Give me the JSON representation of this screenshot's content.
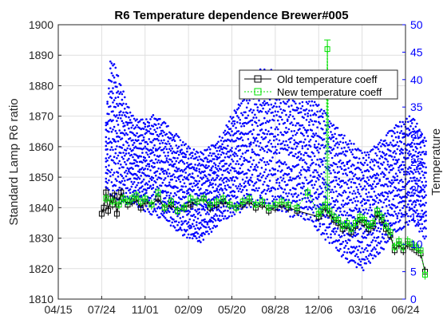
{
  "chart_data": {
    "type": "scatter",
    "title": "R6 Temperature dependence Brewer#005",
    "xlabel": "",
    "ylabel": "Standard Lamp R6 ratio",
    "ylabel_right": "Temperature",
    "x_tick_labels": [
      "04/15",
      "07/24",
      "11/01",
      "02/09",
      "05/20",
      "08/28",
      "12/06",
      "03/16",
      "06/24"
    ],
    "y_left": {
      "lim": [
        1810,
        1900
      ],
      "ticks": [
        1810,
        1820,
        1830,
        1840,
        1850,
        1860,
        1870,
        1880,
        1890,
        1900
      ]
    },
    "y_right": {
      "lim": [
        0,
        50
      ],
      "ticks": [
        0,
        5,
        10,
        15,
        20,
        25,
        30,
        35,
        40,
        45,
        50
      ]
    },
    "grid": true,
    "legend_position": "top-right",
    "colors": {
      "old": "#000000",
      "new": "#00e000",
      "temperature": "#0000ff"
    },
    "series": [
      {
        "name": "Old temperature coeff",
        "axis": "left",
        "points": [
          [
            2.0,
            1838
          ],
          [
            2.1,
            1840
          ],
          [
            2.2,
            1845
          ],
          [
            2.3,
            1839
          ],
          [
            2.4,
            1843
          ],
          [
            2.5,
            1841
          ],
          [
            2.6,
            1844
          ],
          [
            2.7,
            1838
          ],
          [
            2.8,
            1842
          ],
          [
            2.9,
            1845
          ],
          [
            3.0,
            1843
          ],
          [
            3.2,
            1841
          ],
          [
            3.4,
            1842
          ],
          [
            3.6,
            1843
          ],
          [
            3.8,
            1840
          ],
          [
            4.0,
            1842
          ],
          [
            4.3,
            1841
          ],
          [
            4.6,
            1843
          ],
          [
            4.9,
            1840
          ],
          [
            5.2,
            1841
          ],
          [
            5.5,
            1839
          ],
          [
            5.8,
            1840
          ],
          [
            6.1,
            1841
          ],
          [
            6.4,
            1842
          ],
          [
            6.7,
            1843
          ],
          [
            7.0,
            1840
          ],
          [
            7.3,
            1841
          ],
          [
            7.6,
            1842
          ],
          [
            7.9,
            1841
          ],
          [
            8.2,
            1840
          ],
          [
            8.5,
            1841
          ],
          [
            8.8,
            1842
          ],
          [
            9.1,
            1840
          ],
          [
            9.4,
            1841
          ],
          [
            9.7,
            1839
          ],
          [
            10.0,
            1840
          ],
          [
            10.3,
            1841
          ],
          [
            10.6,
            1840
          ],
          [
            11.0,
            1839
          ],
          [
            12.0,
            1837
          ],
          [
            12.1,
            1838
          ],
          [
            12.3,
            1840
          ],
          [
            12.5,
            1838
          ],
          [
            12.7,
            1836
          ],
          [
            12.9,
            1835
          ],
          [
            13.1,
            1833
          ],
          [
            13.3,
            1834
          ],
          [
            13.5,
            1832
          ],
          [
            13.7,
            1834
          ],
          [
            13.9,
            1836
          ],
          [
            14.1,
            1835
          ],
          [
            14.3,
            1833
          ],
          [
            14.5,
            1834
          ],
          [
            14.7,
            1838
          ],
          [
            14.9,
            1836
          ],
          [
            15.1,
            1833
          ],
          [
            15.3,
            1831
          ],
          [
            15.5,
            1826
          ],
          [
            15.7,
            1828
          ],
          [
            15.9,
            1826
          ],
          [
            16.1,
            1828
          ],
          [
            16.3,
            1827
          ],
          [
            16.5,
            1826
          ],
          [
            16.7,
            1825
          ],
          [
            16.9,
            1819
          ]
        ]
      },
      {
        "name": "New temperature coeff",
        "axis": "left",
        "points": [
          [
            2.2,
            1843
          ],
          [
            2.5,
            1842
          ],
          [
            2.8,
            1841
          ],
          [
            3.0,
            1843
          ],
          [
            3.2,
            1842
          ],
          [
            3.4,
            1843
          ],
          [
            3.6,
            1844
          ],
          [
            3.8,
            1842
          ],
          [
            4.0,
            1843
          ],
          [
            4.3,
            1841
          ],
          [
            4.6,
            1845
          ],
          [
            4.9,
            1840
          ],
          [
            5.2,
            1842
          ],
          [
            5.5,
            1839
          ],
          [
            5.8,
            1840
          ],
          [
            6.1,
            1843
          ],
          [
            6.4,
            1842
          ],
          [
            6.7,
            1843
          ],
          [
            7.0,
            1841
          ],
          [
            7.3,
            1842
          ],
          [
            7.6,
            1843
          ],
          [
            7.9,
            1841
          ],
          [
            8.2,
            1840
          ],
          [
            8.5,
            1842
          ],
          [
            8.8,
            1843
          ],
          [
            9.1,
            1841
          ],
          [
            9.4,
            1842
          ],
          [
            9.7,
            1840
          ],
          [
            10.0,
            1841
          ],
          [
            10.3,
            1842
          ],
          [
            10.6,
            1841
          ],
          [
            11.0,
            1840
          ],
          [
            11.5,
            1845
          ],
          [
            12.0,
            1838
          ],
          [
            12.1,
            1839
          ],
          [
            12.3,
            1841
          ],
          [
            12.4,
            1892
          ],
          [
            12.5,
            1839
          ],
          [
            12.7,
            1837
          ],
          [
            12.9,
            1836
          ],
          [
            13.1,
            1834
          ],
          [
            13.3,
            1835
          ],
          [
            13.5,
            1833
          ],
          [
            13.7,
            1835
          ],
          [
            13.9,
            1837
          ],
          [
            14.1,
            1836
          ],
          [
            14.3,
            1834
          ],
          [
            14.5,
            1835
          ],
          [
            14.7,
            1839
          ],
          [
            14.9,
            1837
          ],
          [
            15.1,
            1834
          ],
          [
            15.3,
            1832
          ],
          [
            15.5,
            1827
          ],
          [
            15.7,
            1829
          ],
          [
            15.9,
            1827
          ],
          [
            16.1,
            1829
          ],
          [
            16.3,
            1828
          ],
          [
            16.5,
            1827
          ],
          [
            16.7,
            1826
          ],
          [
            16.9,
            1818
          ]
        ]
      },
      {
        "name": "Temperature",
        "axis": "right",
        "envelope": [
          [
            2.2,
            20,
            33
          ],
          [
            2.4,
            19,
            45
          ],
          [
            2.7,
            18,
            42
          ],
          [
            3.0,
            17,
            38
          ],
          [
            3.5,
            17,
            33
          ],
          [
            4.0,
            16,
            33
          ],
          [
            4.5,
            15,
            34
          ],
          [
            5.0,
            14,
            32
          ],
          [
            5.5,
            12,
            30
          ],
          [
            6.0,
            11,
            28
          ],
          [
            6.5,
            10,
            27
          ],
          [
            7.0,
            12,
            28
          ],
          [
            7.5,
            14,
            30
          ],
          [
            8.0,
            15,
            34
          ],
          [
            8.5,
            16,
            38
          ],
          [
            9.0,
            17,
            41
          ],
          [
            9.5,
            17,
            43
          ],
          [
            10.0,
            16,
            42
          ],
          [
            10.5,
            15,
            40
          ],
          [
            11.0,
            15,
            38
          ],
          [
            11.5,
            14,
            37
          ],
          [
            12.0,
            12,
            36
          ],
          [
            12.5,
            10,
            34
          ],
          [
            13.0,
            8,
            31
          ],
          [
            13.5,
            6,
            29
          ],
          [
            14.0,
            5,
            27
          ],
          [
            14.5,
            7,
            28
          ],
          [
            15.0,
            9,
            30
          ],
          [
            15.5,
            12,
            32
          ],
          [
            16.0,
            13,
            33
          ],
          [
            16.3,
            14,
            34
          ],
          [
            16.7,
            12,
            31
          ],
          [
            17.0,
            10,
            29
          ]
        ]
      }
    ]
  }
}
